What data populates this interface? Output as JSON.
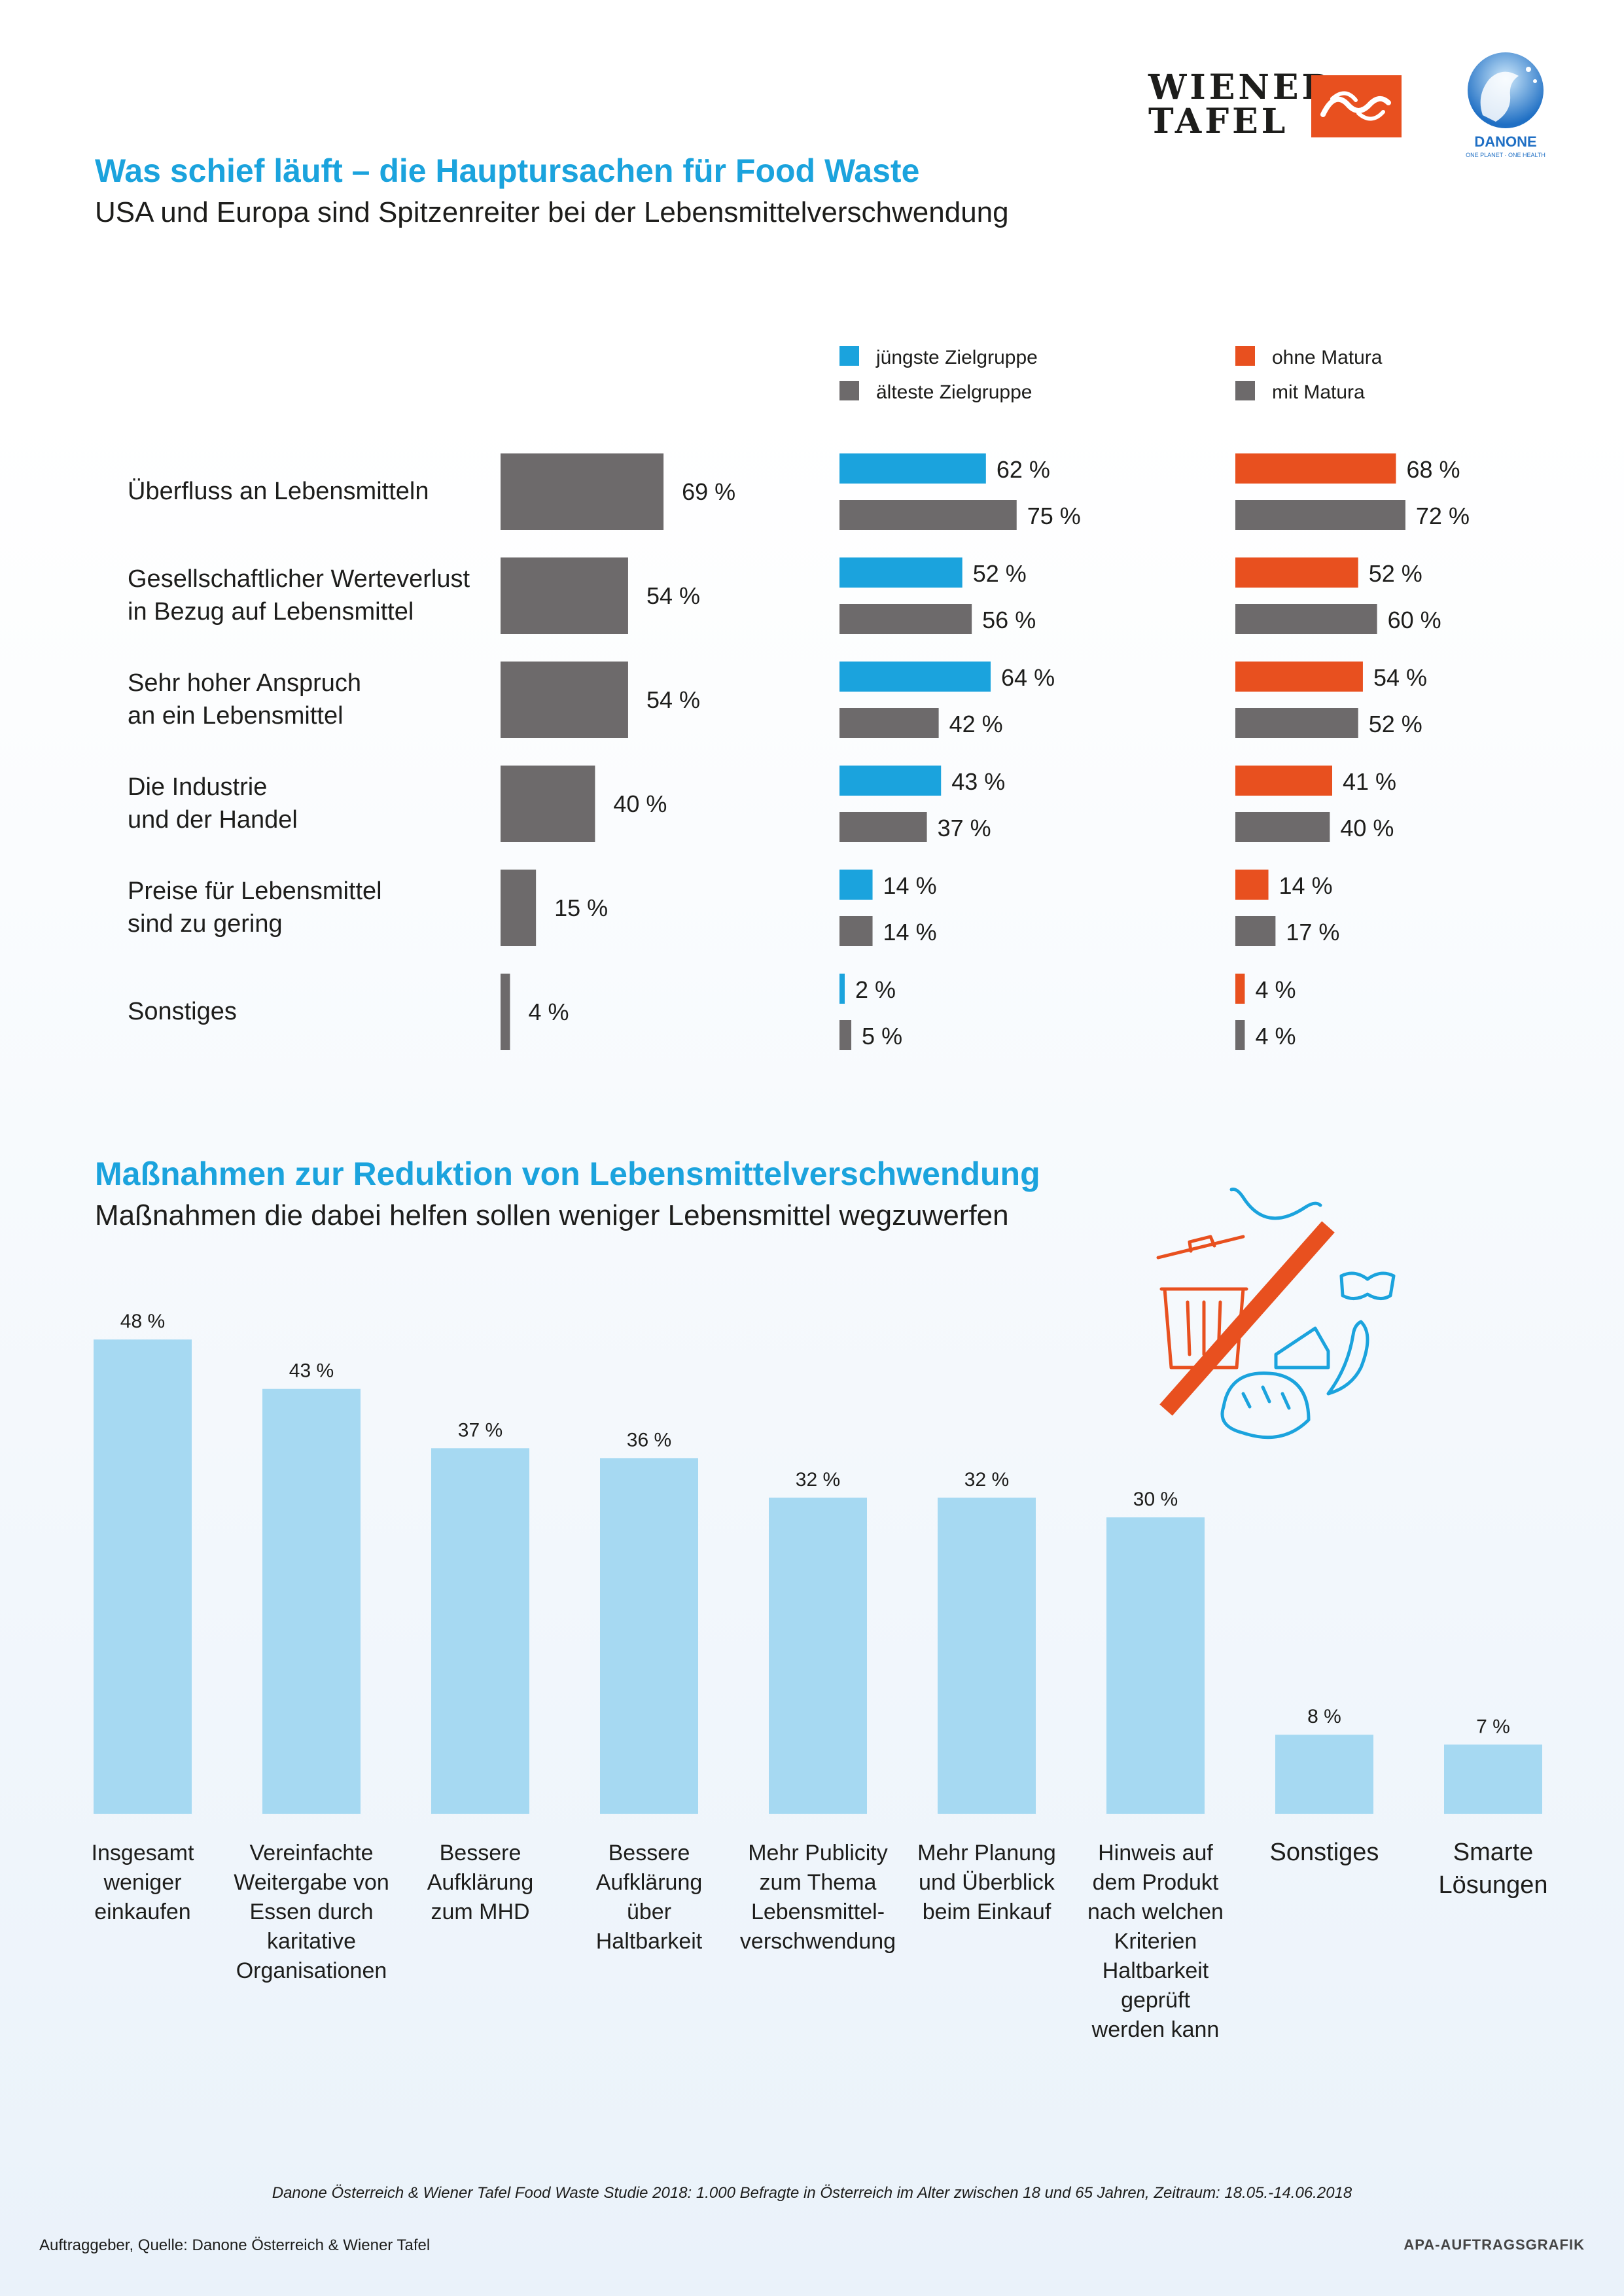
{
  "header": {
    "logo_wiener_line1": "WIENER",
    "logo_wiener_line2": "TAFEL",
    "logo_danone": "DANONE",
    "logo_danone_tagline": "ONE PLANET · ONE HEALTH"
  },
  "section1": {
    "title": "Was schief läuft – die Hauptursachen für Food Waste",
    "subtitle": "USA und Europa sind Spitzenreiter bei der Lebensmittelverschwendung"
  },
  "section2": {
    "title": "Maßnahmen zur Reduktion von Lebensmittelverschwendung",
    "subtitle": "Maßnahmen die dabei helfen sollen weniger Lebensmittel wegzuwerfen"
  },
  "colors": {
    "blue": "#1ba3dd",
    "gray": "#6d6a6b",
    "orange": "#e8501f",
    "light_blue": "#a6d9f2",
    "title_blue": "#1ba3dd"
  },
  "icons": [
    "wiener-tafel-logo-icon",
    "danone-logo-icon",
    "trash-can-icon",
    "sausage-icon",
    "pasta-icon",
    "cheese-icon",
    "chili-icon",
    "bread-icon",
    "strike-through-icon"
  ],
  "chart_data": [
    {
      "type": "bar",
      "orientation": "horizontal",
      "categories": [
        [
          "Überfluss an Lebensmitteln"
        ],
        [
          "Gesellschaftlicher Werteverlust",
          "in Bezug auf Lebensmittel"
        ],
        [
          "Sehr hoher Anspruch",
          "an ein Lebensmittel"
        ],
        [
          "Die Industrie",
          "und der Handel"
        ],
        [
          "Preise für Lebensmittel",
          "sind zu gering"
        ],
        [
          "Sonstiges"
        ]
      ],
      "unit": "%",
      "groups": [
        {
          "series": [
            {
              "name": "",
              "color": "gray",
              "values": [
                69,
                54,
                54,
                40,
                15,
                4
              ]
            }
          ]
        },
        {
          "series": [
            {
              "name": "jüngste Zielgruppe",
              "color": "blue",
              "values": [
                62,
                52,
                64,
                43,
                14,
                2
              ]
            },
            {
              "name": "älteste Zielgruppe",
              "color": "gray",
              "values": [
                75,
                56,
                42,
                37,
                14,
                5
              ]
            }
          ]
        },
        {
          "series": [
            {
              "name": "ohne Matura",
              "color": "orange",
              "values": [
                68,
                52,
                54,
                41,
                14,
                4
              ]
            },
            {
              "name": "mit Matura",
              "color": "gray",
              "values": [
                72,
                60,
                52,
                40,
                17,
                4
              ]
            }
          ]
        }
      ],
      "legend_placement": "top",
      "grid": false
    },
    {
      "type": "bar",
      "orientation": "vertical",
      "unit": "%",
      "categories": [
        [
          "Insgesamt",
          "weniger",
          "einkaufen"
        ],
        [
          "Vereinfachte",
          "Weitergabe von",
          "Essen durch",
          "karitative",
          "Organisationen"
        ],
        [
          "Bessere",
          "Aufklärung",
          "zum MHD"
        ],
        [
          "Bessere",
          "Aufklärung",
          "über",
          "Haltbarkeit"
        ],
        [
          "Mehr Publicity",
          "zum Thema",
          "Lebensmittel-",
          "verschwendung"
        ],
        [
          "Mehr Planung",
          "und Überblick",
          "beim Einkauf"
        ],
        [
          "Hinweis auf",
          "dem Produkt",
          "nach welchen",
          "Kriterien",
          "Haltbarkeit",
          "geprüft",
          "werden kann"
        ],
        [
          "Sonstiges"
        ],
        [
          "Smarte",
          "Lösungen"
        ]
      ],
      "values": [
        48,
        43,
        37,
        36,
        32,
        32,
        30,
        8,
        7
      ],
      "color": "light_blue",
      "grid": false
    }
  ],
  "footer": {
    "footnote": "Danone Österreich & Wiener Tafel Food Waste Studie 2018: 1.000 Befragte in Österreich im Alter zwischen 18 und 65 Jahren, Zeitraum: 18.05.-14.06.2018",
    "credit_left": "Auftraggeber, Quelle: Danone Österreich & Wiener Tafel",
    "credit_right": "APA-AUFTRAGSGRAFIK"
  }
}
